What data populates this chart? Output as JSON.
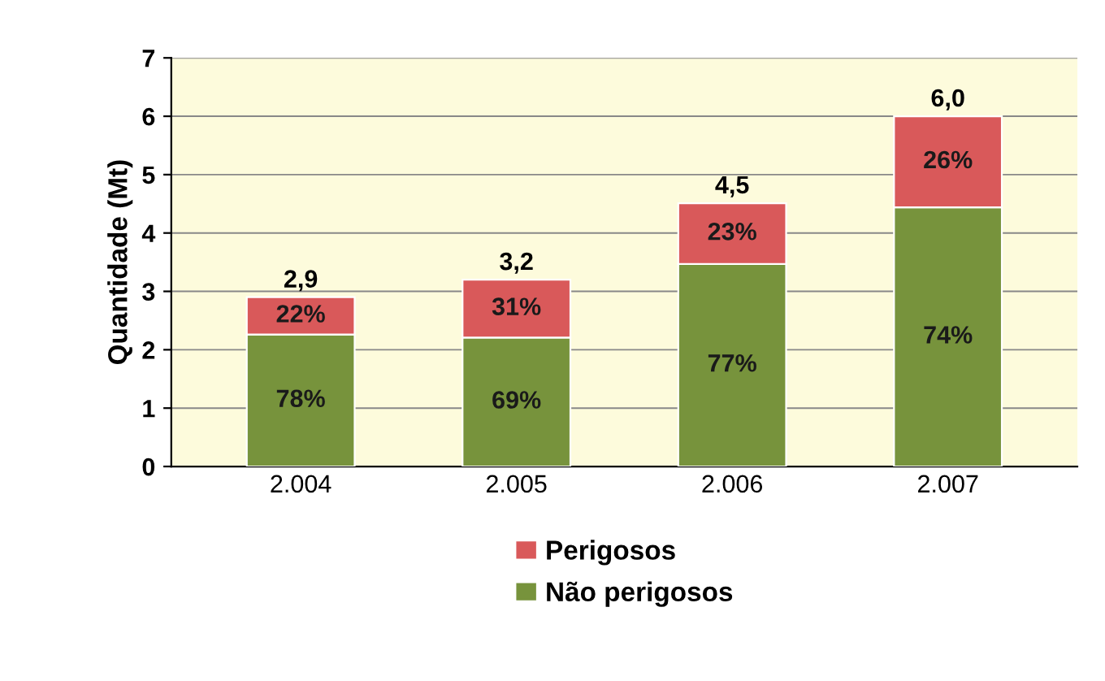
{
  "chart_data": {
    "type": "bar",
    "stacked": true,
    "ylabel": "Quantidade (Mt)",
    "categories": [
      "2.004",
      "2.005",
      "2.006",
      "2.007"
    ],
    "series": [
      {
        "name": "Não perigosos",
        "color": "#77933c",
        "values": [
          2.26,
          2.21,
          3.47,
          4.44
        ]
      },
      {
        "name": "Perigosos",
        "color": "#d9595a",
        "values": [
          0.64,
          0.99,
          1.04,
          1.56
        ]
      }
    ],
    "annotations": [
      "78%",
      "69%",
      "77%",
      "74%",
      "22%",
      "31%",
      "23%",
      "26%"
    ],
    "totals": [
      "2,9",
      "3,2",
      "4,5",
      "6,0"
    ],
    "ylim": [
      0,
      7
    ],
    "yticks": [
      0,
      1,
      2,
      3,
      4,
      5,
      6,
      7
    ],
    "grid": "y",
    "legend": "bottom"
  }
}
